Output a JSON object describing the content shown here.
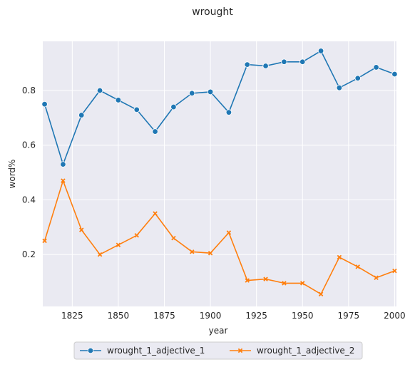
{
  "chart_data": {
    "type": "line",
    "title": "wrought",
    "xlabel": "year",
    "ylabel": "word%",
    "xlim": [
      1809,
      2001
    ],
    "ylim": [
      0.01,
      0.98
    ],
    "xticks": [
      1825,
      1850,
      1875,
      1900,
      1925,
      1950,
      1975,
      2000
    ],
    "yticks": [
      0.2,
      0.4,
      0.6,
      0.8
    ],
    "ytick_labels": [
      "0.2",
      "0.4",
      "0.6",
      "0.8"
    ],
    "grid": true,
    "legend_placement": "bottom-center",
    "x": [
      1810,
      1820,
      1830,
      1840,
      1850,
      1860,
      1870,
      1880,
      1890,
      1900,
      1910,
      1920,
      1930,
      1940,
      1950,
      1960,
      1970,
      1980,
      1990,
      2000
    ],
    "series": [
      {
        "name": "wrought_1_adjective_1",
        "color": "#1f77b4",
        "marker": "circle",
        "values": [
          0.75,
          0.53,
          0.71,
          0.8,
          0.765,
          0.73,
          0.65,
          0.74,
          0.79,
          0.795,
          0.72,
          0.895,
          0.89,
          0.905,
          0.905,
          0.945,
          0.81,
          0.845,
          0.885,
          0.86
        ]
      },
      {
        "name": "wrought_1_adjective_2",
        "color": "#ff7f0e",
        "marker": "x",
        "values": [
          0.25,
          0.47,
          0.29,
          0.2,
          0.235,
          0.27,
          0.35,
          0.26,
          0.21,
          0.205,
          0.28,
          0.105,
          0.11,
          0.095,
          0.095,
          0.055,
          0.19,
          0.155,
          0.115,
          0.14
        ]
      }
    ]
  }
}
